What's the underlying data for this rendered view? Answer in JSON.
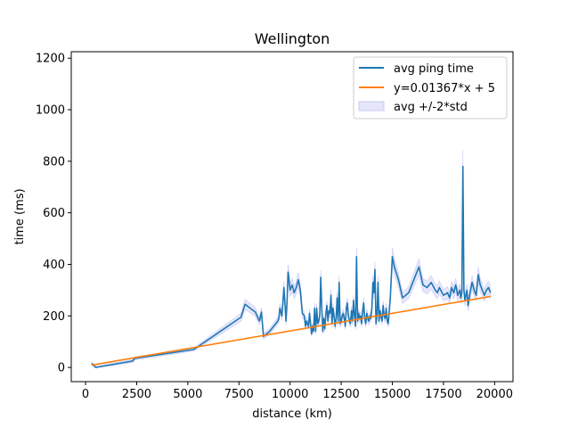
{
  "chart_data": {
    "type": "line",
    "title": "Wellington",
    "xlabel": "distance (km)",
    "ylabel": "time (ms)",
    "xlim": [
      -700,
      20900
    ],
    "ylim": [
      -55,
      1225
    ],
    "xticks": [
      0,
      2500,
      5000,
      7500,
      10000,
      12500,
      15000,
      17500,
      20000
    ],
    "yticks": [
      0,
      200,
      400,
      600,
      800,
      1000,
      1200
    ],
    "legend": {
      "position": "top-right",
      "entries": [
        "avg ping time",
        "y=0.01367*x + 5",
        "avg +/-2*std"
      ]
    },
    "colors": {
      "avg": "#1f77b4",
      "fit": "#ff7f0e",
      "band_fill": "#e6e6fa",
      "band_edge": "#c8c8f8"
    },
    "series": [
      {
        "name": "avg ping time",
        "x": [
          300,
          500,
          2300,
          2400,
          5300,
          7600,
          7800,
          8300,
          8500,
          8600,
          8700,
          9000,
          9100,
          9200,
          9300,
          9400,
          9450,
          9500,
          9600,
          9700,
          9800,
          9850,
          9900,
          9950,
          10000,
          10100,
          10200,
          10300,
          10400,
          10500,
          10600,
          10700,
          10750,
          10800,
          10900,
          10950,
          11000,
          11050,
          11100,
          11150,
          11200,
          11250,
          11300,
          11350,
          11400,
          11450,
          11500,
          11550,
          11600,
          11650,
          11700,
          11750,
          11800,
          11850,
          11900,
          11950,
          12000,
          12050,
          12100,
          12150,
          12200,
          12250,
          12300,
          12350,
          12400,
          12450,
          12500,
          12550,
          12600,
          12650,
          12700,
          12750,
          12800,
          12850,
          12900,
          12950,
          13000,
          13050,
          13100,
          13150,
          13200,
          13250,
          13300,
          13350,
          13400,
          13450,
          13500,
          13550,
          13600,
          13650,
          13700,
          13750,
          13800,
          13850,
          13900,
          13950,
          14000,
          14050,
          14100,
          14150,
          14200,
          14250,
          14300,
          14350,
          14400,
          14450,
          14500,
          14550,
          14600,
          14650,
          14700,
          14750,
          14800,
          14900,
          15000,
          15100,
          15300,
          15500,
          15800,
          16100,
          16300,
          16500,
          16700,
          16900,
          17100,
          17200,
          17300,
          17500,
          17700,
          17800,
          17900,
          18000,
          18100,
          18200,
          18300,
          18350,
          18400,
          18450,
          18500,
          18550,
          18600,
          18650,
          18700,
          18800,
          18900,
          19000,
          19100,
          19200,
          19300,
          19400,
          19500,
          19600,
          19700,
          19800
        ],
        "y": [
          15,
          0,
          25,
          35,
          70,
          195,
          245,
          215,
          180,
          215,
          120,
          140,
          150,
          160,
          170,
          180,
          190,
          230,
          200,
          310,
          180,
          250,
          370,
          340,
          300,
          320,
          290,
          310,
          340,
          300,
          210,
          200,
          160,
          180,
          160,
          210,
          170,
          130,
          160,
          140,
          230,
          140,
          230,
          170,
          180,
          200,
          350,
          230,
          140,
          190,
          150,
          210,
          240,
          180,
          220,
          210,
          280,
          170,
          230,
          200,
          160,
          190,
          270,
          180,
          330,
          170,
          180,
          200,
          210,
          190,
          160,
          230,
          250,
          200,
          180,
          170,
          220,
          180,
          260,
          200,
          160,
          430,
          180,
          210,
          190,
          200,
          170,
          220,
          250,
          190,
          170,
          210,
          190,
          180,
          200,
          190,
          230,
          330,
          290,
          380,
          170,
          200,
          330,
          180,
          220,
          200,
          180,
          240,
          200,
          190,
          230,
          180,
          170,
          270,
          430,
          390,
          340,
          270,
          290,
          350,
          390,
          320,
          310,
          330,
          300,
          290,
          310,
          280,
          290,
          270,
          310,
          290,
          320,
          280,
          300,
          270,
          290,
          780,
          300,
          260,
          280,
          300,
          240,
          290,
          330,
          300,
          280,
          360,
          320,
          300,
          280,
          300,
          310,
          290
        ]
      }
    ]
  }
}
